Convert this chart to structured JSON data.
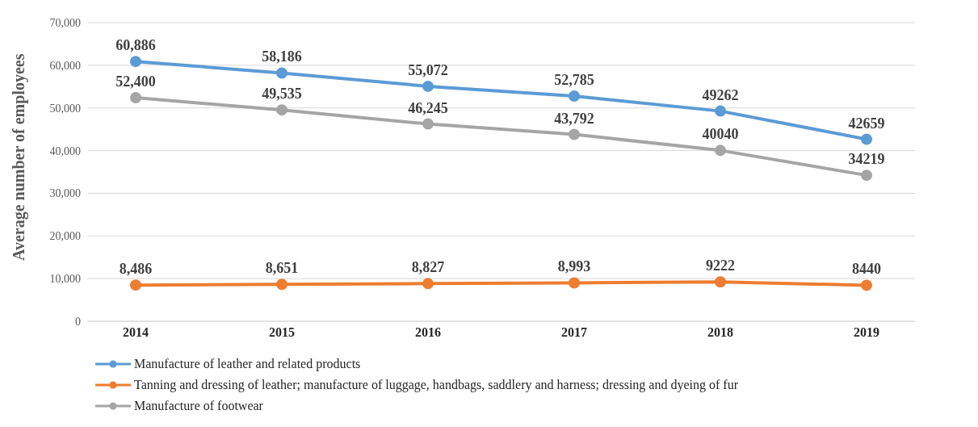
{
  "chart_data": {
    "type": "line",
    "ylabel": "Average number of employees",
    "categories": [
      "2014",
      "2015",
      "2016",
      "2017",
      "2018",
      "2019"
    ],
    "series": [
      {
        "name": "Manufacture of leather and related products",
        "color": "#5b9bd5",
        "values": [
          60886,
          58186,
          55072,
          52785,
          49262,
          42659
        ],
        "value_labels": [
          "60,886",
          "58,186",
          "55,072",
          "52,785",
          "49262",
          "42659"
        ]
      },
      {
        "name": "Tanning and dressing of leather; manufacture of luggage, handbags, saddlery and harness; dressing and dyeing of fur",
        "color": "#ed7d31",
        "values": [
          8486,
          8651,
          8827,
          8993,
          9222,
          8440
        ],
        "value_labels": [
          "8,486",
          "8,651",
          "8,827",
          "8,993",
          "9222",
          "8440"
        ]
      },
      {
        "name": "Manufacture of footwear",
        "color": "#a5a5a5",
        "values": [
          52400,
          49535,
          46245,
          43792,
          40040,
          34219
        ],
        "value_labels": [
          "52,400",
          "49,535",
          "46,245",
          "43,792",
          "40040",
          "34219"
        ]
      }
    ],
    "ylim": [
      0,
      70000
    ],
    "yticks": [
      0,
      {
        "value": 10000,
        "label": "10,000"
      },
      {
        "value": 20000,
        "label": "20,000"
      },
      {
        "value": 30000,
        "label": "30,000"
      },
      {
        "value": 40000,
        "label": "40,000"
      },
      {
        "value": 50000,
        "label": "50,000"
      },
      {
        "value": 60000,
        "label": "60,000"
      },
      {
        "value": 70000,
        "label": "70,000"
      }
    ],
    "grid": "y",
    "legend": "bottom left",
    "marker": "circle",
    "line_style": "solid"
  }
}
